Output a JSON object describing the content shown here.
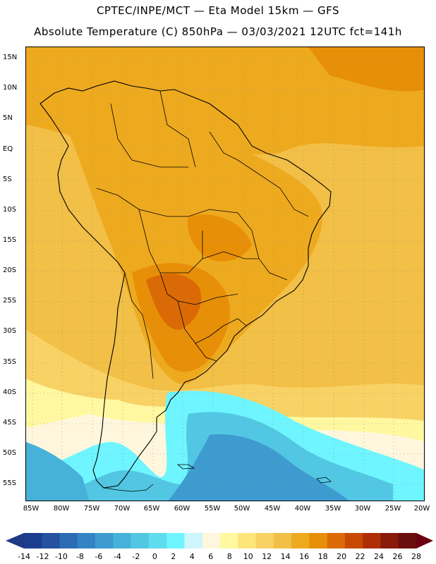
{
  "title_line1": "CPTEC/INPE/MCT —  Eta Model 15km — GFS",
  "title_line2": "Absolute Temperature (C) 850hPa — 03/03/2021 12UTC fct=141h",
  "lat_labels": [
    "15N",
    "10N",
    "5N",
    "EQ",
    "5S",
    "10S",
    "15S",
    "20S",
    "25S",
    "30S",
    "35S",
    "40S",
    "45S",
    "50S",
    "55S"
  ],
  "lon_labels": [
    "85W",
    "80W",
    "75W",
    "70W",
    "65W",
    "60W",
    "55W",
    "50W",
    "45W",
    "40W",
    "35W",
    "30W",
    "25W",
    "20W"
  ],
  "colorbar": {
    "ticks": [
      "-14",
      "-12",
      "-10",
      "-8",
      "-6",
      "-4",
      "-2",
      "0",
      "2",
      "4",
      "6",
      "8",
      "10",
      "12",
      "14",
      "16",
      "18",
      "20",
      "22",
      "24",
      "26",
      "28"
    ],
    "colors": [
      "#1c3d8f",
      "#2451a0",
      "#2b6cb4",
      "#3384c2",
      "#3d9bcf",
      "#47b2d9",
      "#52c7e3",
      "#5fdcee",
      "#6ff5ff",
      "#cdf5fb",
      "#fff7dd",
      "#fff8a0",
      "#fde57a",
      "#f8d264",
      "#f2bf47",
      "#eeaa1e",
      "#e88f08",
      "#db6a06",
      "#c94904",
      "#ae2e05",
      "#8a1a0a",
      "#6a0e0b"
    ],
    "left_arrow_color": "#1e3a84",
    "right_arrow_color": "#6b0010"
  }
}
